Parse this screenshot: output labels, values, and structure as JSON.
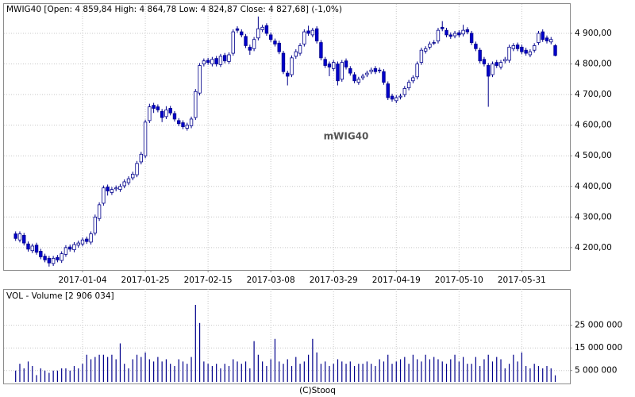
{
  "chart_data": [
    {
      "type": "candlestick",
      "header": "MWIG40 [Open: 4 859,84  High: 4 864,78  Low: 4 824,87  Close: 4 827,68] (-1,0%)",
      "title": "mWIG40",
      "open": [
        4245,
        4225,
        4240,
        4212,
        4190,
        4208,
        4188,
        4172,
        4165,
        4148,
        4168,
        4158,
        4178,
        4202,
        4193,
        4208,
        4212,
        4228,
        4218,
        4248,
        4295,
        4345,
        4398,
        4380,
        4392,
        4390,
        4402,
        4412,
        4428,
        4438,
        4480,
        4500,
        4615,
        4665,
        4660,
        4645,
        4628,
        4655,
        4638,
        4615,
        4608,
        4590,
        4598,
        4625,
        4705,
        4800,
        4812,
        4800,
        4818,
        4798,
        4828,
        4808,
        4835,
        4915,
        4905,
        4890,
        4855,
        4850,
        4885,
        4912,
        4925,
        4895,
        4875,
        4868,
        4835,
        4770,
        4765,
        4825,
        4835,
        4865,
        4908,
        4895,
        4915,
        4870,
        4815,
        4800,
        4785,
        4800,
        4750,
        4810,
        4785,
        4765,
        4740,
        4755,
        4765,
        4775,
        4785,
        4778,
        4775,
        4735,
        4695,
        4680,
        4692,
        4700,
        4722,
        4745,
        4758,
        4805,
        4842,
        4855,
        4870,
        4875,
        4920,
        4910,
        4895,
        4892,
        4902,
        4898,
        4912,
        4900,
        4865,
        4845,
        4815,
        4795,
        4765,
        4805,
        4790,
        4810,
        4812,
        4850,
        4862,
        4855,
        4845,
        4830,
        4845,
        4870,
        4905,
        4885,
        4872,
        4859.84
      ],
      "high": [
        4253,
        4253,
        4248,
        4220,
        4213,
        4216,
        4196,
        4180,
        4173,
        4173,
        4176,
        4188,
        4208,
        4210,
        4218,
        4223,
        4233,
        4236,
        4253,
        4308,
        4348,
        4403,
        4406,
        4398,
        4403,
        4408,
        4423,
        4433,
        4448,
        4483,
        4513,
        4618,
        4670,
        4673,
        4668,
        4653,
        4662,
        4663,
        4646,
        4623,
        4616,
        4608,
        4628,
        4718,
        4803,
        4818,
        4820,
        4823,
        4826,
        4833,
        4836,
        4838,
        4913,
        4923,
        4913,
        4898,
        4863,
        4888,
        4955,
        4928,
        4933,
        4903,
        4883,
        4876,
        4843,
        4778,
        4828,
        4848,
        4868,
        4913,
        4925,
        4918,
        4923,
        4878,
        4823,
        4808,
        4813,
        4808,
        4813,
        4818,
        4793,
        4773,
        4758,
        4768,
        4778,
        4788,
        4793,
        4788,
        4783,
        4743,
        4703,
        4698,
        4703,
        4728,
        4748,
        4763,
        4808,
        4853,
        4858,
        4873,
        4878,
        4918,
        4940,
        4918,
        4903,
        4908,
        4910,
        4928,
        4920,
        4908,
        4873,
        4853,
        4823,
        4803,
        4808,
        4813,
        4813,
        4823,
        4863,
        4868,
        4870,
        4863,
        4853,
        4848,
        4868,
        4908,
        4913,
        4893,
        4888,
        4864.78
      ],
      "low": [
        4222,
        4217,
        4207,
        4187,
        4182,
        4177,
        4162,
        4152,
        4138,
        4140,
        4152,
        4150,
        4170,
        4187,
        4185,
        4200,
        4204,
        4212,
        4210,
        4240,
        4287,
        4337,
        4370,
        4372,
        4384,
        4382,
        4394,
        4404,
        4420,
        4430,
        4472,
        4492,
        4607,
        4640,
        4642,
        4610,
        4620,
        4632,
        4612,
        4597,
        4587,
        4582,
        4590,
        4617,
        4697,
        4792,
        4797,
        4792,
        4792,
        4790,
        4802,
        4800,
        4827,
        4902,
        4887,
        4852,
        4830,
        4842,
        4877,
        4904,
        4892,
        4872,
        4857,
        4832,
        4767,
        4730,
        4757,
        4817,
        4827,
        4857,
        4892,
        4887,
        4867,
        4812,
        4787,
        4760,
        4777,
        4730,
        4742,
        4782,
        4762,
        4737,
        4732,
        4747,
        4757,
        4767,
        4767,
        4770,
        4732,
        4682,
        4677,
        4672,
        4684,
        4692,
        4714,
        4737,
        4750,
        4797,
        4834,
        4847,
        4862,
        4867,
        4907,
        4887,
        4882,
        4884,
        4887,
        4890,
        4897,
        4862,
        4842,
        4802,
        4792,
        4660,
        4757,
        4787,
        4782,
        4802,
        4804,
        4842,
        4842,
        4832,
        4827,
        4822,
        4837,
        4862,
        4872,
        4867,
        4864,
        4824.87
      ],
      "close": [
        4230,
        4245,
        4215,
        4195,
        4205,
        4185,
        4170,
        4160,
        4150,
        4165,
        4160,
        4180,
        4200,
        4195,
        4210,
        4215,
        4225,
        4220,
        4245,
        4300,
        4340,
        4395,
        4385,
        4390,
        4395,
        4400,
        4415,
        4425,
        4440,
        4475,
        4505,
        4610,
        4660,
        4655,
        4650,
        4625,
        4650,
        4640,
        4620,
        4605,
        4595,
        4600,
        4620,
        4710,
        4795,
        4810,
        4805,
        4815,
        4800,
        4825,
        4810,
        4830,
        4905,
        4910,
        4895,
        4860,
        4845,
        4880,
        4915,
        4920,
        4900,
        4880,
        4865,
        4840,
        4775,
        4760,
        4820,
        4840,
        4860,
        4905,
        4900,
        4910,
        4875,
        4820,
        4795,
        4790,
        4805,
        4745,
        4805,
        4790,
        4770,
        4745,
        4750,
        4760,
        4770,
        4780,
        4775,
        4780,
        4740,
        4690,
        4685,
        4690,
        4695,
        4720,
        4740,
        4755,
        4800,
        4845,
        4850,
        4865,
        4870,
        4910,
        4915,
        4895,
        4890,
        4900,
        4895,
        4910,
        4905,
        4870,
        4850,
        4810,
        4800,
        4760,
        4800,
        4795,
        4805,
        4815,
        4855,
        4860,
        4850,
        4840,
        4835,
        4840,
        4860,
        4900,
        4880,
        4875,
        4880,
        4827.68
      ],
      "up_color": "#ffffff",
      "down_color": "#0000cc",
      "line_color": "#00008b",
      "ylim": [
        4127,
        4996
      ],
      "yticks": [
        {
          "value": 4200,
          "label": "4 200,00"
        },
        {
          "value": 4300,
          "label": "4 300,00"
        },
        {
          "value": 4400,
          "label": "4 400,00"
        },
        {
          "value": 4500,
          "label": "4 500,00"
        },
        {
          "value": 4600,
          "label": "4 600,00"
        },
        {
          "value": 4700,
          "label": "4 700,00"
        },
        {
          "value": 4800,
          "label": "4 800,00"
        },
        {
          "value": 4900,
          "label": "4 900,00"
        }
      ],
      "xticks": [
        {
          "value": 16,
          "label": "2017-01-04"
        },
        {
          "value": 31,
          "label": "2017-01-25"
        },
        {
          "value": 46,
          "label": "2017-02-15"
        },
        {
          "value": 61,
          "label": "2017-03-08"
        },
        {
          "value": 76,
          "label": "2017-03-29"
        },
        {
          "value": 91,
          "label": "2017-04-19"
        },
        {
          "value": 106,
          "label": "2017-05-10"
        },
        {
          "value": 121,
          "label": "2017-05-31"
        }
      ],
      "grid": true
    },
    {
      "type": "bar",
      "header": "VOL - Volume [2 906 034]",
      "values": [
        5000000,
        8000000,
        6000000,
        9000000,
        7000000,
        3000000,
        6000000,
        5000000,
        4000000,
        5000000,
        5000000,
        6000000,
        6000000,
        5000000,
        7000000,
        6000000,
        8000000,
        12000000,
        10000000,
        11000000,
        12000000,
        12000000,
        11000000,
        12000000,
        10000000,
        17000000,
        8000000,
        6000000,
        10000000,
        12000000,
        11000000,
        13000000,
        10000000,
        9000000,
        11000000,
        9000000,
        10000000,
        8000000,
        7000000,
        10000000,
        9000000,
        8000000,
        11000000,
        34000000,
        26000000,
        9000000,
        8000000,
        7000000,
        8000000,
        6000000,
        8000000,
        7000000,
        10000000,
        9000000,
        8000000,
        9000000,
        6000000,
        18000000,
        12000000,
        9000000,
        7000000,
        10000000,
        19000000,
        9000000,
        8000000,
        10000000,
        7000000,
        11000000,
        8000000,
        9000000,
        12000000,
        19000000,
        13000000,
        8000000,
        9000000,
        7000000,
        8000000,
        10000000,
        9000000,
        8000000,
        9000000,
        7000000,
        8000000,
        8000000,
        9000000,
        8000000,
        7000000,
        10000000,
        9000000,
        12000000,
        8000000,
        9000000,
        10000000,
        11000000,
        8000000,
        12000000,
        10000000,
        9000000,
        12000000,
        10000000,
        11000000,
        10000000,
        9000000,
        8000000,
        10000000,
        12000000,
        9000000,
        11000000,
        8000000,
        8000000,
        11000000,
        7000000,
        10000000,
        12000000,
        9000000,
        11000000,
        10000000,
        6000000,
        8000000,
        12000000,
        9000000,
        13000000,
        7000000,
        6000000,
        8000000,
        7000000,
        6000000,
        7000000,
        6000000,
        2906034
      ],
      "color": "#00008b",
      "ylim": [
        0,
        41000000
      ],
      "yticks": [
        {
          "value": 5000000,
          "label": "5 000 000"
        },
        {
          "value": 15000000,
          "label": "15 000 000"
        },
        {
          "value": 25000000,
          "label": "25 000 000"
        }
      ],
      "grid": true
    }
  ],
  "footer": "(C)Stooq"
}
